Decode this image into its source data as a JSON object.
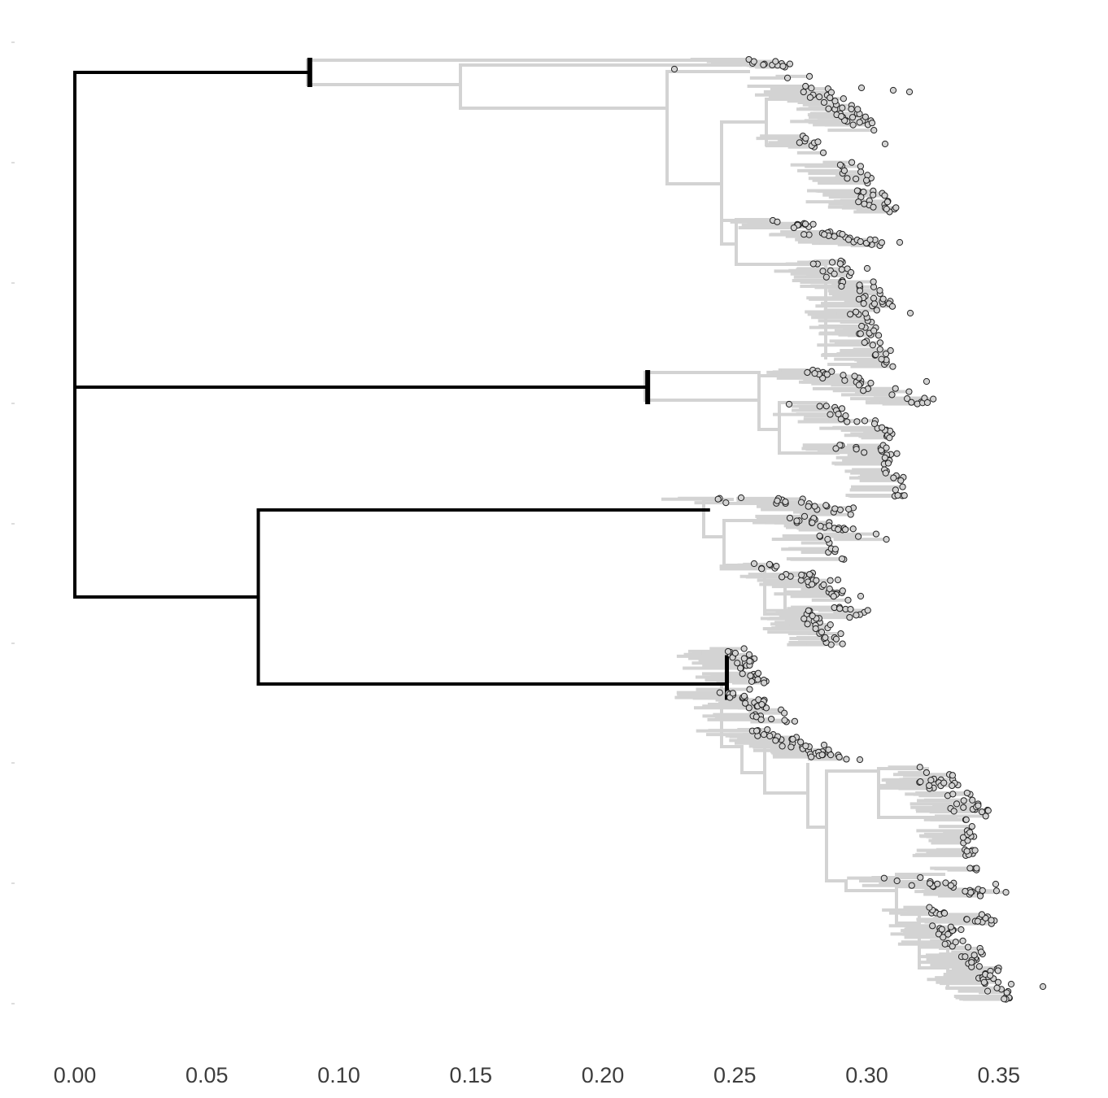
{
  "chart_data": {
    "type": "tree",
    "title": "",
    "xlabel": "",
    "ylabel": "",
    "x_ticks": [
      0.0,
      0.05,
      0.1,
      0.15,
      0.2,
      0.25,
      0.3,
      0.35
    ],
    "x_tick_labels": [
      "0.00",
      "0.05",
      "0.10",
      "0.15",
      "0.20",
      "0.25",
      "0.30",
      "0.35"
    ],
    "xlim": [
      0.0,
      0.37
    ],
    "grid": false,
    "legend": "none",
    "colors": {
      "backbone": "#000000",
      "subtree": "#d3d3d3",
      "tip_fill": "#d3d3d3",
      "tip_stroke": "#222222"
    },
    "backbone": {
      "root_x": 0.0,
      "clades": [
        {
          "node_x": 0.089,
          "child": "A"
        },
        {
          "node_x": 0.217,
          "child": "B"
        },
        {
          "node_x": 0.0695,
          "children": [
            {
              "node_x": 0.24,
              "child": "C"
            },
            {
              "node_x": 0.247,
              "child": "D"
            }
          ]
        }
      ]
    },
    "clades": {
      "A": {
        "x_range": [
          0.089,
          0.318
        ],
        "tips_x_range": [
          0.255,
          0.317
        ]
      },
      "B": {
        "x_range": [
          0.217,
          0.325
        ],
        "tips_x_range": [
          0.27,
          0.325
        ]
      },
      "C": {
        "x_range": [
          0.24,
          0.307
        ],
        "tips_x_range": [
          0.243,
          0.306
        ]
      },
      "D": {
        "x_range": [
          0.247,
          0.369
        ],
        "tips_x_range": [
          0.249,
          0.369
        ]
      }
    }
  }
}
